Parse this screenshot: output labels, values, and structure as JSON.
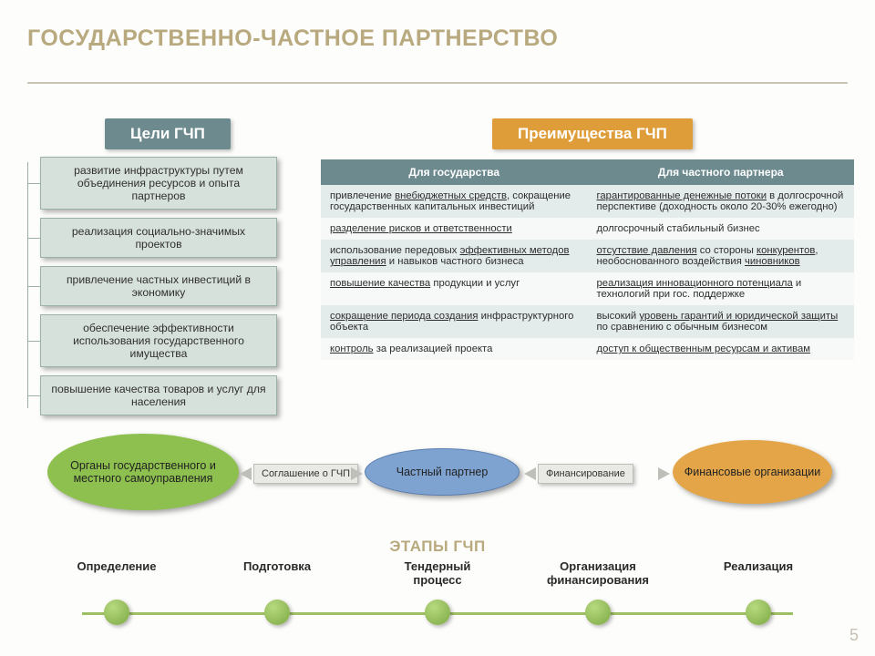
{
  "title": "ГОСУДАРСТВЕННО-ЧАСТНОЕ ПАРТНЕРСТВО",
  "headers": {
    "goals": "Цели ГЧП",
    "advantages": "Преимущества ГЧП",
    "goals_bg": "#6d8b8f",
    "adv_bg": "#df9d3a"
  },
  "goals": [
    "развитие инфраструктуры путем объединения ресурсов и опыта партнеров",
    "реализация социально-значимых проектов",
    "привлечение частных инвестиций в экономику",
    "обеспечение эффективности использования государственного имущества",
    "повышение качества товаров и услуг для населения"
  ],
  "table": {
    "col1": "Для государства",
    "col2": "Для частного партнера",
    "rows": [
      [
        "привлечение <span class='u'>внебюджетных средств</span>, сокращение государственных капитальных инвестиций",
        "<span class='u'>гарантированные денежные потоки</span> в долгосрочной перспективе (доходность около 20-30% ежегодно)"
      ],
      [
        "<span class='u'>разделение рисков и ответственности</span>",
        "долгосрочный стабильный бизнес"
      ],
      [
        "использование передовых <span class='u'>эффективных методов управления</span> и навыков частного бизнеса",
        "<span class='u'>отсутствие давления</span> со стороны <span class='u'>конкурентов</span>, необоснованного воздействия <span class='u'>чиновников</span>"
      ],
      [
        "<span class='u'>повышение качества</span> продукции и услуг",
        "<span class='u'>реализация инновационного потенциала</span> и технологий при гос. поддержке"
      ],
      [
        "<span class='u'>сокращение периода создания</span> инфраструктурного объекта",
        "высокий <span class='u'>уровень гарантий и юридической защиты</span> по сравнению с обычным бизнесом"
      ],
      [
        "<span class='u'>контроль</span> за реализацией проекта",
        "<span class='u'>доступ к общественным ресурсам и активам</span>"
      ]
    ]
  },
  "flow": {
    "left": "Органы государственного и местного самоуправления",
    "mid": "Частный партнер",
    "right": "Финансовые организации",
    "conn1": "Соглашение о ГЧП",
    "conn2": "Финансирование",
    "colors": {
      "green": "#8dc04e",
      "blue": "#7fa3d1",
      "orange": "#e3a547"
    }
  },
  "stages": {
    "title": "ЭТАПЫ ГЧП",
    "items": [
      "Определение",
      "Подготовка",
      "Тендерный процесс",
      "Организация финансирования",
      "Реализация"
    ]
  },
  "page": "5"
}
